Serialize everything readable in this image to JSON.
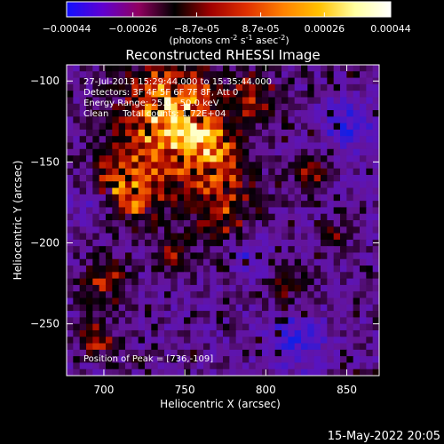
{
  "colorbar": {
    "tick_labels": [
      "-0.00044",
      "-0.00026",
      "-8.7e-05",
      "8.7e-05",
      "0.00026",
      "0.00044"
    ],
    "unit_label_main": "(photons cm",
    "unit_sup1": "-2",
    "unit_mid1": " s",
    "unit_sup2": "-1",
    "unit_mid2": " asec",
    "unit_sup3": "-2",
    "unit_end": ")",
    "range": [
      -0.00044,
      0.00044
    ],
    "colormap_stops": [
      "#1010ff",
      "#6000d0",
      "#900060",
      "#000000",
      "#a00000",
      "#e03000",
      "#ff8000",
      "#ffc000",
      "#ffffa0",
      "#ffffff"
    ]
  },
  "chart_data": {
    "type": "heatmap",
    "title": "Reconstructed RHESSI Image",
    "xlabel": "Heliocentric X (arcsec)",
    "ylabel": "Heliocentric Y (arcsec)",
    "xlim": [
      677,
      870
    ],
    "ylim": [
      -282,
      -90
    ],
    "x_ticks": [
      700,
      750,
      800,
      850
    ],
    "y_ticks": [
      -100,
      -150,
      -200,
      -250
    ],
    "x_tick_labels": [
      "700",
      "750",
      "800",
      "850"
    ],
    "y_tick_labels": [
      "−100",
      "−150",
      "−200",
      "−250"
    ],
    "peak_position": [
      736,
      -109
    ],
    "annotations": [
      "27-Jul-2013 15:29:44.000 to 15:35:44.000",
      "Detectors: 3F 4F 5F 6F 7F 8F, Att 0",
      "Energy Range: 25.0 - 50.0 keV",
      "Clean     Total counts: 1.72E+04",
      "Position of Peak = [736,-109]"
    ]
  },
  "footer": {
    "timestamp": "15-May-2022 20:05"
  }
}
